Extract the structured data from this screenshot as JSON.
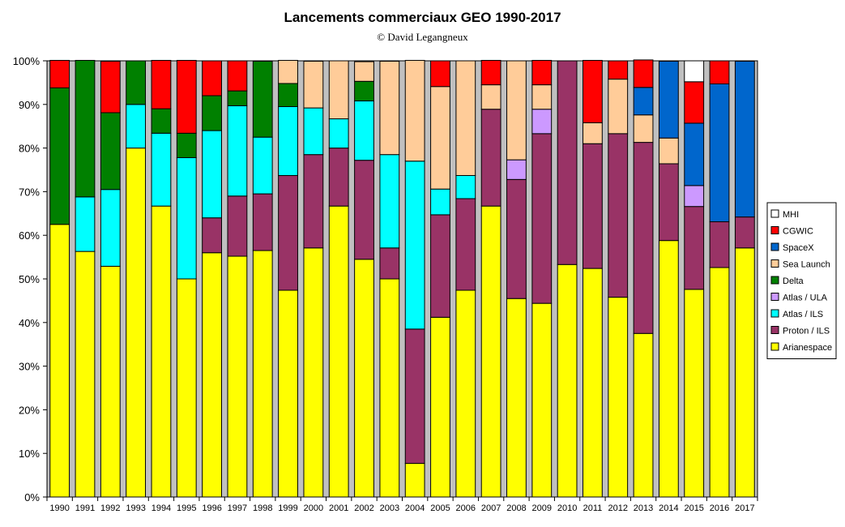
{
  "chart_data": {
    "type": "bar",
    "stacked": true,
    "title": "Lancements commerciaux GEO 1990-2017",
    "subtitle": "© David Legangneux",
    "xlabel": "",
    "ylabel": "",
    "ylim": [
      0,
      100
    ],
    "y_ticks": [
      "0%",
      "10%",
      "20%",
      "30%",
      "40%",
      "50%",
      "60%",
      "70%",
      "80%",
      "90%",
      "100%"
    ],
    "grid": false,
    "legend_position": "right",
    "categories": [
      "1990",
      "1991",
      "1992",
      "1993",
      "1994",
      "1995",
      "1996",
      "1997",
      "1998",
      "1999",
      "2000",
      "2001",
      "2002",
      "2003",
      "2004",
      "2005",
      "2006",
      "2007",
      "2008",
      "2009",
      "2010",
      "2011",
      "2012",
      "2013",
      "2014",
      "2015",
      "2016",
      "2017"
    ],
    "series": [
      {
        "name": "Arianespace",
        "color": "#ffff00",
        "values": [
          62.5,
          56.3,
          52.9,
          80,
          66.7,
          50,
          56,
          55.2,
          56.5,
          47.4,
          57.1,
          66.7,
          54.5,
          50,
          7.7,
          41.2,
          47.4,
          66.7,
          45.5,
          44.4,
          53.3,
          52.4,
          45.8,
          37.5,
          58.8,
          47.6,
          52.6,
          57.1
        ]
      },
      {
        "name": "Proton / ILS",
        "color": "#993366",
        "values": [
          0,
          0,
          0,
          0,
          0,
          0,
          8,
          13.8,
          13,
          26.3,
          21.4,
          13.3,
          22.7,
          7.1,
          30.8,
          23.5,
          21,
          22.2,
          27.3,
          38.9,
          46.7,
          28.6,
          37.5,
          43.8,
          17.6,
          19,
          10.5,
          7.1
        ]
      },
      {
        "name": "Atlas / ILS",
        "color": "#00ffff",
        "values": [
          0,
          12.5,
          17.6,
          10,
          16.7,
          27.8,
          20,
          20.7,
          13,
          15.8,
          10.7,
          6.7,
          13.6,
          21.4,
          38.5,
          5.9,
          5.3,
          0,
          0,
          0,
          0,
          0,
          0,
          0,
          0,
          0,
          0,
          0
        ]
      },
      {
        "name": "Atlas / ULA",
        "color": "#cc99ff",
        "values": [
          0,
          0,
          0,
          0,
          0,
          0,
          0,
          0,
          0,
          0,
          0,
          0,
          0,
          0,
          0,
          0,
          0,
          0,
          4.5,
          5.6,
          0,
          0,
          0,
          0,
          0,
          4.8,
          0,
          0
        ]
      },
      {
        "name": "Delta",
        "color": "#008000",
        "values": [
          31.3,
          31.3,
          17.6,
          10,
          5.6,
          5.6,
          8,
          3.4,
          17.4,
          5.3,
          0,
          0,
          4.5,
          0,
          0,
          0,
          0,
          0,
          0,
          0,
          0,
          0,
          0,
          0,
          0,
          0,
          0,
          0
        ]
      },
      {
        "name": "Sea Launch",
        "color": "#ffcc99",
        "values": [
          0,
          0,
          0,
          0,
          0,
          0,
          0,
          0,
          0,
          5.3,
          10.7,
          13.3,
          4.5,
          21.4,
          23.1,
          23.5,
          26.3,
          5.6,
          22.7,
          5.6,
          0,
          4.8,
          12.5,
          6.3,
          5.9,
          0,
          0,
          0
        ]
      },
      {
        "name": "SpaceX",
        "color": "#0066cc",
        "values": [
          0,
          0,
          0,
          0,
          0,
          0,
          0,
          0,
          0,
          0,
          0,
          0,
          0,
          0,
          0,
          0,
          0,
          0,
          0,
          0,
          0,
          0,
          0,
          6.3,
          17.6,
          14.3,
          31.6,
          35.7
        ]
      },
      {
        "name": "CGWIC",
        "color": "#ff0000",
        "values": [
          6.3,
          0,
          11.8,
          0,
          11.1,
          16.7,
          8,
          6.9,
          0,
          0,
          0,
          0,
          0,
          0,
          0,
          5.9,
          0,
          5.6,
          0,
          5.6,
          0,
          14.3,
          4.2,
          6.3,
          0,
          9.5,
          5.3,
          0
        ]
      },
      {
        "name": "MHI",
        "color": "#ffffff",
        "values": [
          0,
          0,
          0,
          0,
          0,
          0,
          0,
          0,
          0,
          0,
          0,
          0,
          0,
          0,
          0,
          0,
          0,
          0,
          0,
          0,
          0,
          0,
          0,
          0,
          0,
          4.8,
          0,
          0
        ]
      }
    ]
  }
}
